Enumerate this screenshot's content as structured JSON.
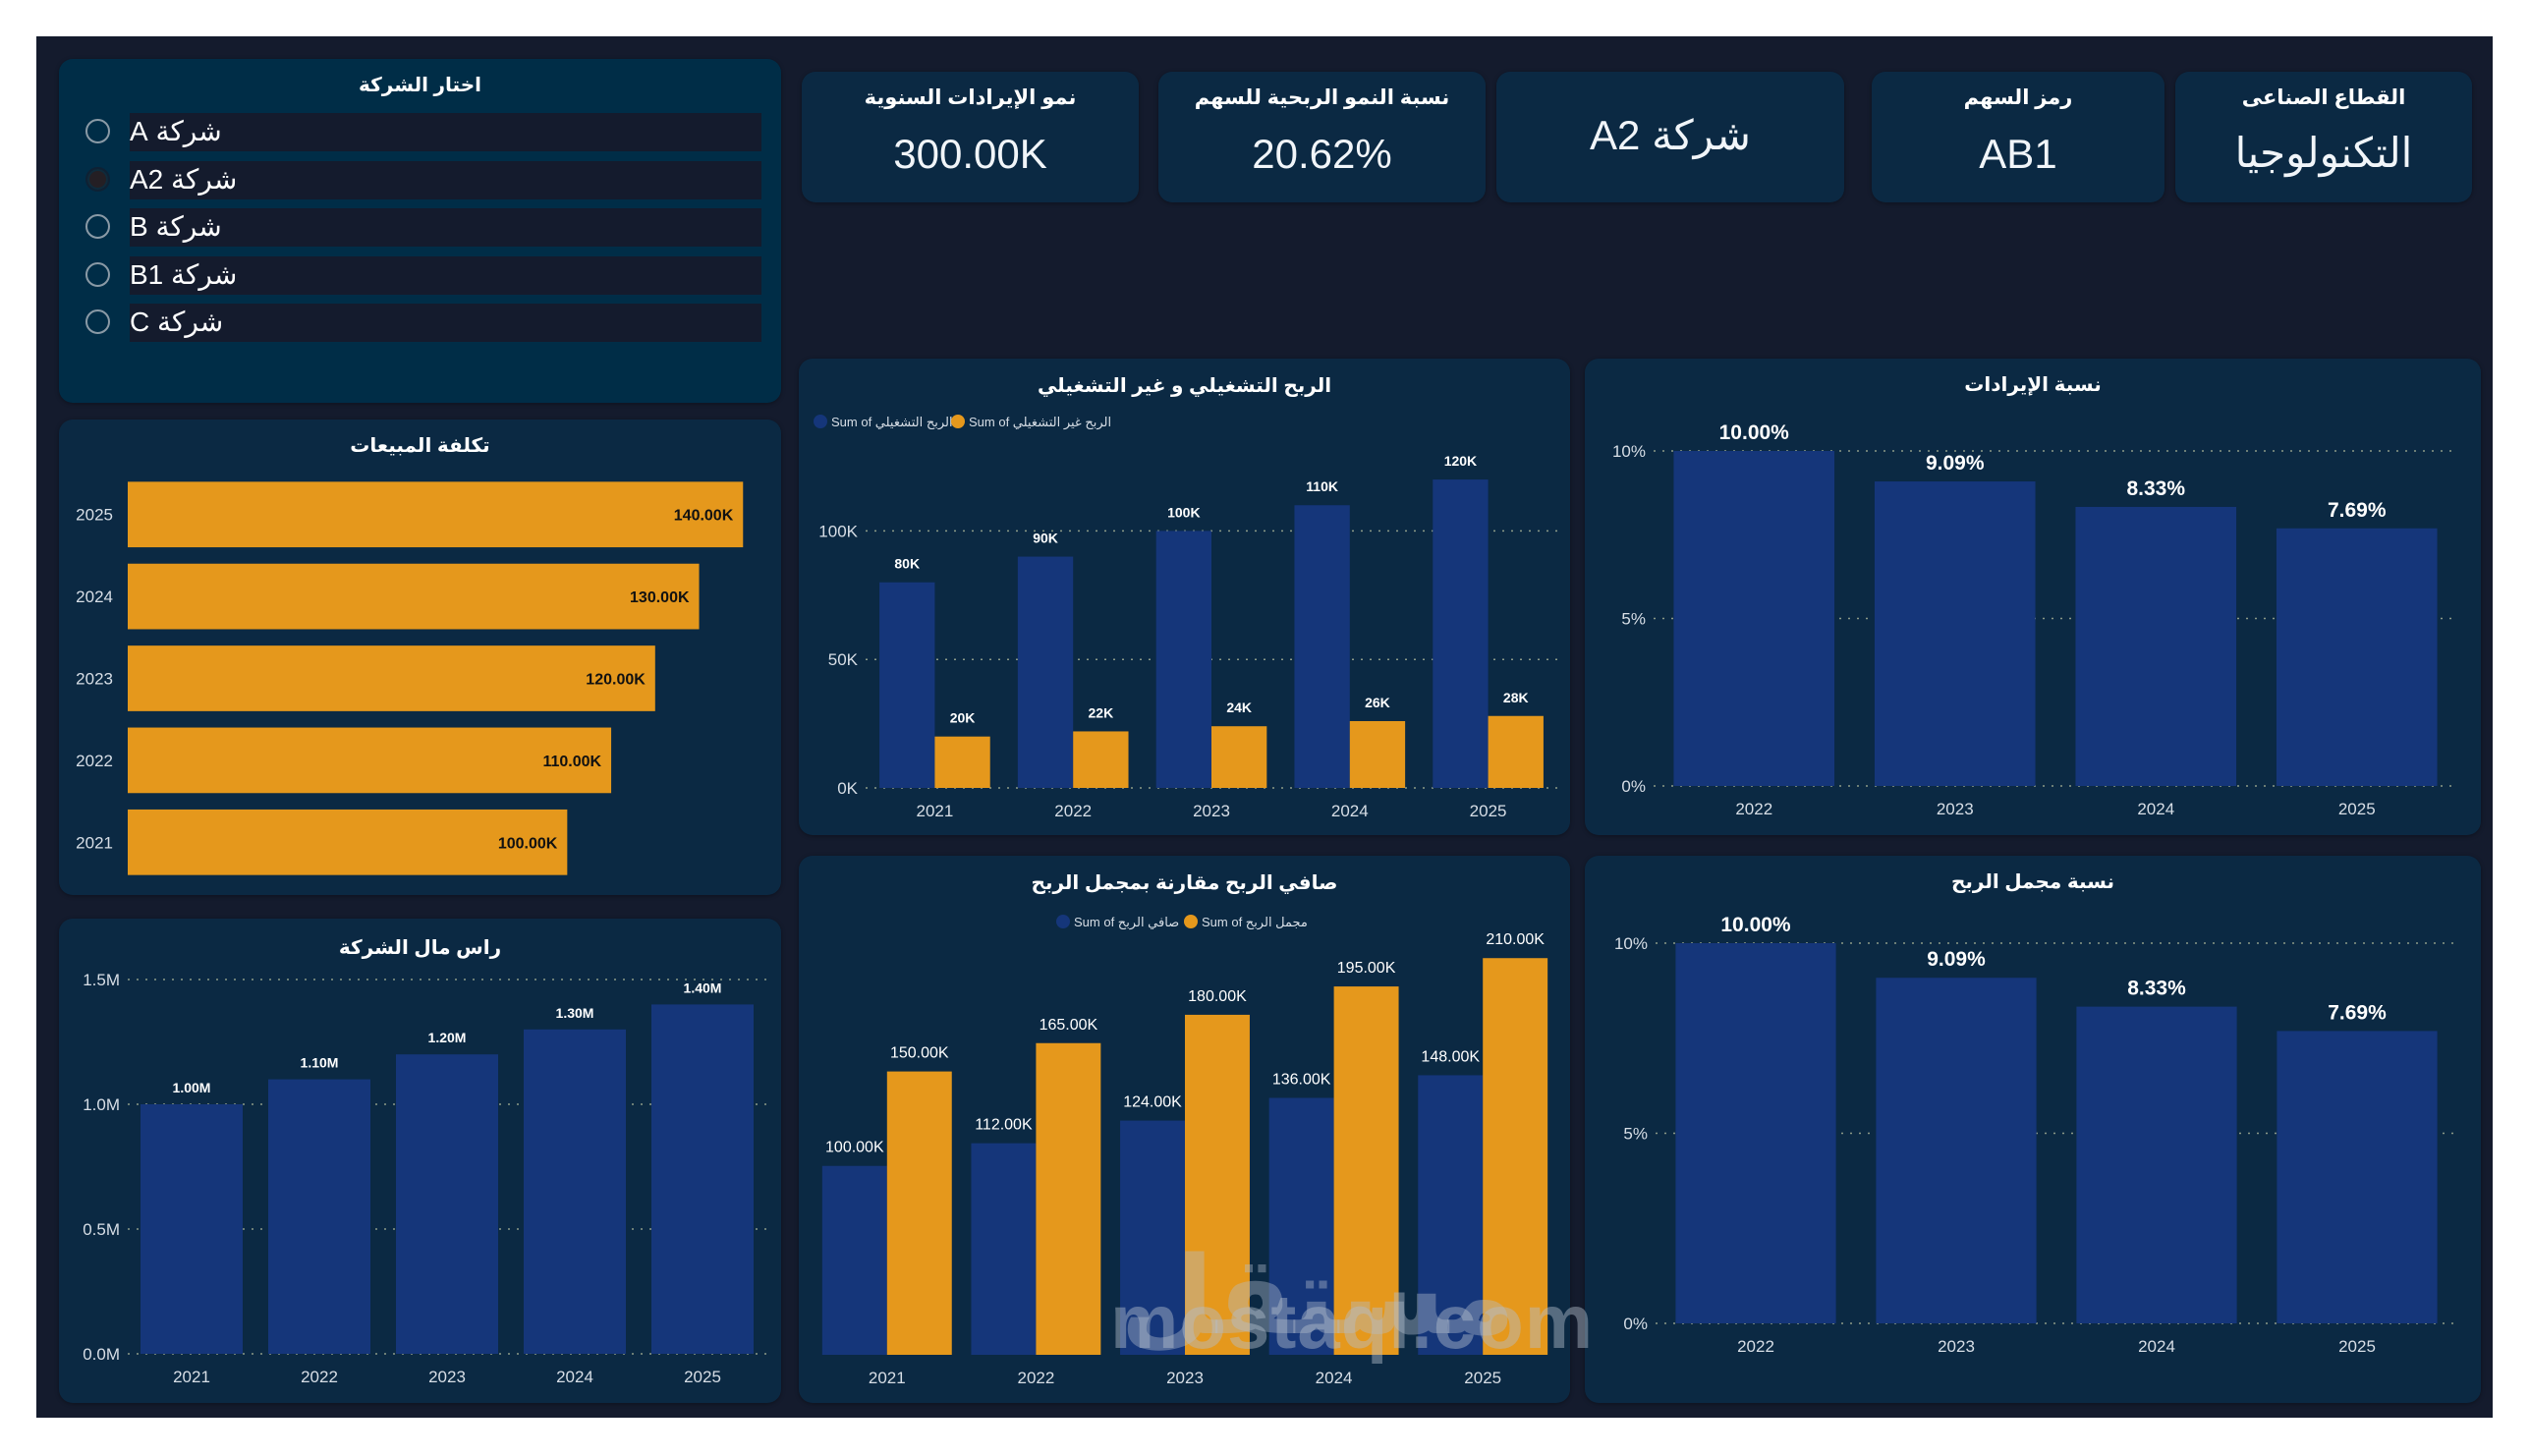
{
  "colors": {
    "background": "#141b2d",
    "card": "#0b2943",
    "slicer_card": "#002d47",
    "blue_series": "#15367a",
    "orange_series": "#e5981c",
    "text": "#ffffff"
  },
  "slicer": {
    "title": "اختار الشركة",
    "selected_index": 1,
    "items": [
      {
        "label": "شركة A",
        "selected": false
      },
      {
        "label": "شركة A2",
        "selected": true
      },
      {
        "label": "شركة B",
        "selected": false
      },
      {
        "label": "شركة B1",
        "selected": false
      },
      {
        "label": "شركة C",
        "selected": false
      }
    ]
  },
  "kpis": [
    {
      "title": "نمو الإيرادات السنوية",
      "value": "300.00K"
    },
    {
      "title": "نسبة النمو الربحية للسهم",
      "value": "20.62%"
    },
    {
      "title": "",
      "value": "شركة A2"
    },
    {
      "title": "رمز السهم",
      "value": "AB1"
    },
    {
      "title": "القطاع الصناعى",
      "value": "التكنولوجيا"
    }
  ],
  "watermark": {
    "arabic": "مستقل",
    "latin": "mostaql.com"
  },
  "chart_data": [
    {
      "id": "cost_of_sales",
      "type": "bar",
      "orientation": "horizontal",
      "title": "تكلفة المبيعات",
      "categories": [
        "2025",
        "2024",
        "2023",
        "2022",
        "2021"
      ],
      "values": [
        140000,
        130000,
        120000,
        110000,
        100000
      ],
      "data_labels": [
        "140.00K",
        "130.00K",
        "120.00K",
        "110.00K",
        "100.00K"
      ],
      "xlim": [
        0,
        150000
      ],
      "color": "#e5981c",
      "grid": false
    },
    {
      "id": "company_capital",
      "type": "bar",
      "title": "راس مال الشركة",
      "categories": [
        "2021",
        "2022",
        "2023",
        "2024",
        "2025"
      ],
      "values": [
        1000000,
        1100000,
        1200000,
        1300000,
        1400000
      ],
      "data_labels": [
        "1.00M",
        "1.10M",
        "1.20M",
        "1.30M",
        "1.40M"
      ],
      "yticks": [
        "0.0M",
        "0.5M",
        "1.0M",
        "1.5M"
      ],
      "ytick_values": [
        0,
        500000,
        1000000,
        1500000
      ],
      "ylim": [
        0,
        1500000
      ],
      "color": "#15367a",
      "grid": true
    },
    {
      "id": "operating_profit",
      "type": "bar",
      "title": "الربح التشغيلي و غير التشغيلي",
      "categories": [
        "2021",
        "2022",
        "2023",
        "2024",
        "2025"
      ],
      "series": [
        {
          "name": "Sum of الربح التشغيلي",
          "values": [
            80000,
            90000,
            100000,
            110000,
            120000
          ],
          "data_labels": [
            "80K",
            "90K",
            "100K",
            "110K",
            "120K"
          ],
          "color": "#15367a"
        },
        {
          "name": "Sum of الربح غير التشغيلي",
          "values": [
            20000,
            22000,
            24000,
            26000,
            28000
          ],
          "data_labels": [
            "20K",
            "22K",
            "24K",
            "26K",
            "28K"
          ],
          "color": "#e5981c"
        }
      ],
      "yticks": [
        "0K",
        "50K",
        "100K"
      ],
      "ytick_values": [
        0,
        50000,
        100000
      ],
      "ylim": [
        0,
        125000
      ],
      "legend": "top-left",
      "grid": true
    },
    {
      "id": "net_vs_gross_profit",
      "type": "bar",
      "title": "صافي الربح مقارنة بمجمل الربح",
      "categories": [
        "2021",
        "2022",
        "2023",
        "2024",
        "2025"
      ],
      "series": [
        {
          "name": "Sum of صافي الربح",
          "values": [
            100000,
            112000,
            124000,
            136000,
            148000
          ],
          "data_labels": [
            "100.00K",
            "112.00K",
            "124.00K",
            "136.00K",
            "148.00K"
          ],
          "color": "#15367a"
        },
        {
          "name": "Sum of مجمل الربح",
          "values": [
            150000,
            165000,
            180000,
            195000,
            210000
          ],
          "data_labels": [
            "150.00K",
            "165.00K",
            "180.00K",
            "195.00K",
            "210.00K"
          ],
          "color": "#e5981c"
        }
      ],
      "ylim": [
        0,
        220000
      ],
      "legend": "top-center",
      "grid": false
    },
    {
      "id": "revenue_ratio",
      "type": "bar",
      "title": "نسبة الإيرادات",
      "categories": [
        "2022",
        "2023",
        "2024",
        "2025"
      ],
      "values": [
        10.0,
        9.09,
        8.33,
        7.69
      ],
      "data_labels": [
        "10.00%",
        "9.09%",
        "8.33%",
        "7.69%"
      ],
      "yticks": [
        "0%",
        "5%",
        "10%"
      ],
      "ytick_values": [
        0,
        5,
        10
      ],
      "ylim": [
        0,
        10
      ],
      "color": "#15367a",
      "grid": true
    },
    {
      "id": "gross_profit_ratio",
      "type": "bar",
      "title": "نسبة مجمل الربح",
      "categories": [
        "2022",
        "2023",
        "2024",
        "2025"
      ],
      "values": [
        10.0,
        9.09,
        8.33,
        7.69
      ],
      "data_labels": [
        "10.00%",
        "9.09%",
        "8.33%",
        "7.69%"
      ],
      "yticks": [
        "0%",
        "5%",
        "10%"
      ],
      "ytick_values": [
        0,
        5,
        10
      ],
      "ylim": [
        0,
        10
      ],
      "color": "#15367a",
      "grid": true
    }
  ]
}
